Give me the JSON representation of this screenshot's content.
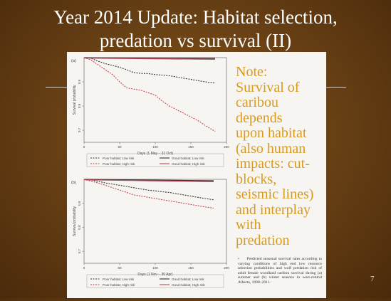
{
  "slide": {
    "title_line1": "Year 2014 Update: Habitat selection,",
    "title_line2": "predation vs survival (II)",
    "page_number": "7"
  },
  "note": {
    "lines": [
      "Note:",
      "Survival of",
      "caribou",
      "depends",
      "upon habitat",
      "(also human",
      "impacts: cut-",
      "blocks,",
      "seismic lines)",
      "and interplay",
      "with",
      "predation"
    ]
  },
  "caption": {
    "marker": "•",
    "text": "Predicted seasonal survival rates according to varying conditions of high end low resource selection probabilities and wolf predation risk of adult female woodland caribou survival during (a) summer and (b) winter seasons in west-central Alberta, 1998–2011."
  },
  "colors": {
    "red": "#c4455a",
    "dark": "#333333",
    "note": "#d99a1d"
  },
  "chart_data": [
    {
      "type": "line",
      "panel_label": "(a)",
      "xlabel": "Days (1 May – 31 Oct)",
      "ylabel": "Survival probability",
      "x_ticks": [
        "0",
        "50",
        "100",
        "150",
        "200"
      ],
      "y_ticks": [
        "0.7",
        "0.8",
        "0.9"
      ],
      "xlim": [
        0,
        200
      ],
      "ylim": [
        0.65,
        1.0
      ],
      "legend": [
        {
          "label": "Poor habitat; Low risk",
          "style": "dashed",
          "color": "#333333"
        },
        {
          "label": "Good habitat; Low risk",
          "style": "solid",
          "color": "#333333"
        },
        {
          "label": "Poor habitat; High risk",
          "style": "dashed",
          "color": "#c4455a"
        },
        {
          "label": "Good habitat; High risk",
          "style": "solid",
          "color": "#c4455a"
        }
      ],
      "series": [
        {
          "name": "Poor habitat; Low risk",
          "x": [
            0,
            10,
            20,
            30,
            40,
            50,
            60,
            70,
            80,
            90,
            100,
            110,
            120,
            130,
            140,
            150,
            160,
            170,
            184
          ],
          "values": [
            1.0,
            0.997,
            0.985,
            0.975,
            0.968,
            0.96,
            0.95,
            0.938,
            0.935,
            0.934,
            0.93,
            0.928,
            0.925,
            0.92,
            0.915,
            0.91,
            0.905,
            0.9,
            0.895
          ]
        },
        {
          "name": "Good habitat; Low risk",
          "x": [
            0,
            184
          ],
          "values": [
            1.0,
            0.997
          ]
        },
        {
          "name": "Poor habitat; High risk",
          "x": [
            0,
            10,
            20,
            30,
            40,
            50,
            60,
            70,
            80,
            90,
            100,
            110,
            120,
            130,
            140,
            150,
            160,
            170,
            184
          ],
          "values": [
            1.0,
            0.99,
            0.97,
            0.95,
            0.93,
            0.9,
            0.875,
            0.87,
            0.865,
            0.855,
            0.845,
            0.82,
            0.8,
            0.785,
            0.77,
            0.755,
            0.74,
            0.72,
            0.695
          ]
        },
        {
          "name": "Good habitat; High risk",
          "x": [
            0,
            184
          ],
          "values": [
            0.998,
            0.993
          ]
        }
      ]
    },
    {
      "type": "line",
      "panel_label": "(b)",
      "xlabel": "Days (1 Nov – 30 Apr)",
      "ylabel": "Survival probability",
      "x_ticks": [
        "0",
        "50",
        "100",
        "150",
        "200"
      ],
      "y_ticks": [
        "0.7",
        "0.8",
        "0.9"
      ],
      "xlim": [
        0,
        200
      ],
      "ylim": [
        0.65,
        1.0
      ],
      "legend": [
        {
          "label": "Poor habitat; Low risk",
          "style": "dashed",
          "color": "#333333"
        },
        {
          "label": "Good habitat; Low risk",
          "style": "solid",
          "color": "#333333"
        },
        {
          "label": "Poor habitat; High risk",
          "style": "dashed",
          "color": "#c4455a"
        },
        {
          "label": "Good habitat; High risk",
          "style": "solid",
          "color": "#c4455a"
        }
      ],
      "series": [
        {
          "name": "Poor habitat; Low risk",
          "x": [
            0,
            10,
            20,
            30,
            40,
            50,
            60,
            70,
            80,
            90,
            100,
            110,
            120,
            130,
            140,
            150,
            160,
            170,
            182
          ],
          "values": [
            1.0,
            0.997,
            0.992,
            0.985,
            0.98,
            0.975,
            0.97,
            0.965,
            0.96,
            0.955,
            0.952,
            0.948,
            0.945,
            0.94,
            0.935,
            0.93,
            0.925,
            0.92,
            0.915
          ]
        },
        {
          "name": "Good habitat; Low risk",
          "x": [
            0,
            182
          ],
          "values": [
            1.0,
            0.994
          ]
        },
        {
          "name": "Poor habitat; High risk",
          "x": [
            0,
            10,
            20,
            30,
            40,
            50,
            60,
            70,
            80,
            90,
            100,
            110,
            120,
            130,
            140,
            150,
            160,
            170,
            182
          ],
          "values": [
            1.0,
            0.992,
            0.985,
            0.975,
            0.965,
            0.955,
            0.945,
            0.935,
            0.93,
            0.925,
            0.92,
            0.915,
            0.91,
            0.905,
            0.9,
            0.895,
            0.89,
            0.885,
            0.88
          ]
        },
        {
          "name": "Good habitat; High risk",
          "x": [
            0,
            182
          ],
          "values": [
            0.998,
            0.99
          ]
        }
      ]
    }
  ]
}
